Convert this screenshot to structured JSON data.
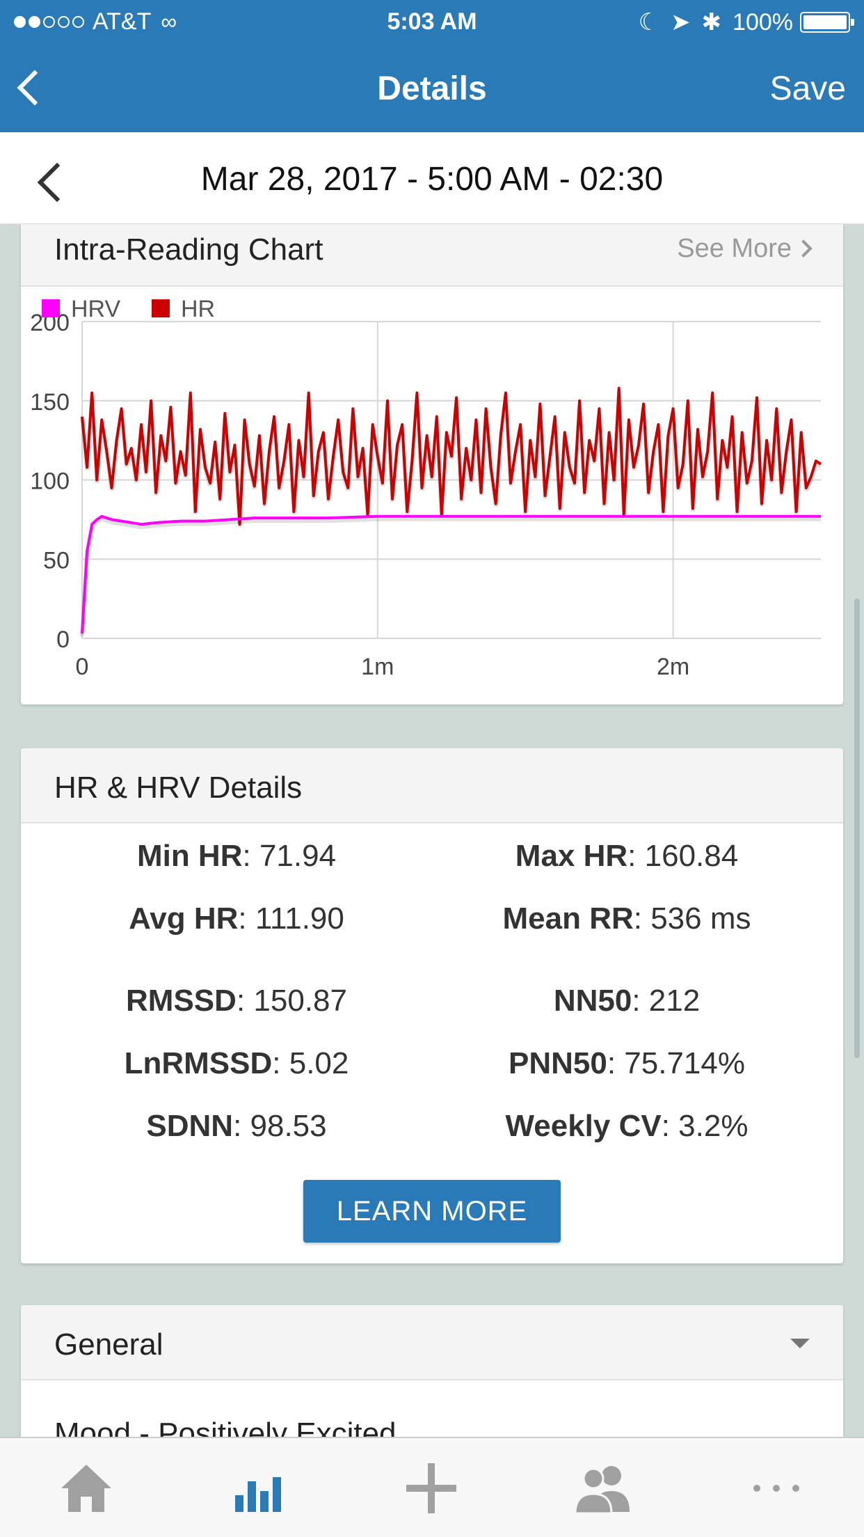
{
  "status_bar": {
    "carrier": "AT&T",
    "time": "5:03 AM",
    "battery": "100%",
    "signal_bars_filled": 2,
    "signal_bars_total": 5
  },
  "nav": {
    "title": "Details",
    "save_label": "Save"
  },
  "date_bar": {
    "date_text": "Mar 28, 2017 - 5:00 AM - 02:30"
  },
  "chart_card": {
    "title": "Intra-Reading Chart",
    "see_more": "See More"
  },
  "chart_data": {
    "type": "line",
    "legend": [
      "HRV",
      "HR"
    ],
    "legend_placement": "top-left",
    "x_ticks": [
      "0",
      "1m",
      "2m"
    ],
    "y_ticks": [
      "0",
      "50",
      "100",
      "150",
      "200"
    ],
    "ylim": [
      0,
      200
    ],
    "xlim_seconds": [
      0,
      150
    ],
    "grid": true,
    "series": [
      {
        "name": "HRV",
        "color": "#ff00ff",
        "x": [
          0,
          1,
          2,
          3,
          4,
          6,
          8,
          10,
          12,
          15,
          20,
          25,
          30,
          35,
          40,
          50,
          60,
          70,
          80,
          90,
          100,
          110,
          120,
          130,
          140,
          150
        ],
        "y": [
          3,
          55,
          72,
          75,
          77,
          75,
          74,
          73,
          72,
          73,
          74,
          74,
          75,
          76,
          76,
          76,
          77,
          77,
          77,
          77,
          77,
          77,
          77,
          77,
          77,
          77
        ]
      },
      {
        "name": "HR",
        "color": "#cc0000",
        "x": [
          0,
          1,
          2,
          3,
          4,
          5,
          6,
          7,
          8,
          9,
          10,
          11,
          12,
          13,
          14,
          15,
          16,
          17,
          18,
          19,
          20,
          21,
          22,
          23,
          24,
          25,
          26,
          27,
          28,
          29,
          30,
          31,
          32,
          33,
          34,
          35,
          36,
          37,
          38,
          39,
          40,
          41,
          42,
          43,
          44,
          45,
          46,
          47,
          48,
          49,
          50,
          51,
          52,
          53,
          54,
          55,
          56,
          57,
          58,
          59,
          60,
          61,
          62,
          63,
          64,
          65,
          66,
          67,
          68,
          69,
          70,
          71,
          72,
          73,
          74,
          75,
          76,
          77,
          78,
          79,
          80,
          81,
          82,
          83,
          84,
          85,
          86,
          87,
          88,
          89,
          90,
          91,
          92,
          93,
          94,
          95,
          96,
          97,
          98,
          99,
          100,
          101,
          102,
          103,
          104,
          105,
          106,
          107,
          108,
          109,
          110,
          111,
          112,
          113,
          114,
          115,
          116,
          117,
          118,
          119,
          120,
          121,
          122,
          123,
          124,
          125,
          126,
          127,
          128,
          129,
          130,
          131,
          132,
          133,
          134,
          135,
          136,
          137,
          138,
          139,
          140,
          141,
          142,
          143,
          144,
          145,
          146,
          147,
          148,
          149,
          150
        ],
        "y": [
          140,
          108,
          155,
          100,
          138,
          118,
          95,
          125,
          145,
          110,
          120,
          100,
          135,
          105,
          150,
          92,
          128,
          112,
          146,
          98,
          118,
          103,
          155,
          80,
          132,
          108,
          98,
          124,
          88,
          142,
          105,
          122,
          72,
          138,
          110,
          96,
          128,
          85,
          118,
          140,
          95,
          112,
          135,
          80,
          125,
          102,
          155,
          90,
          118,
          130,
          88,
          115,
          138,
          105,
          95,
          145,
          102,
          120,
          78,
          135,
          115,
          98,
          150,
          88,
          122,
          135,
          80,
          112,
          155,
          95,
          128,
          102,
          140,
          78,
          130,
          115,
          152,
          88,
          120,
          100,
          138,
          92,
          145,
          108,
          85,
          128,
          155,
          98,
          118,
          135,
          80,
          125,
          102,
          148,
          90,
          115,
          140,
          82,
          130,
          108,
          98,
          150,
          92,
          125,
          112,
          145,
          85,
          130,
          100,
          158,
          78,
          138,
          108,
          122,
          148,
          92,
          118,
          135,
          80,
          128,
          145,
          95,
          110,
          150,
          82,
          132,
          102,
          118,
          155,
          88,
          125,
          108,
          140,
          80,
          130,
          98,
          112,
          152,
          85,
          125,
          100,
          145,
          92,
          118,
          138,
          80,
          130,
          95,
          102,
          112,
          110
        ]
      }
    ]
  },
  "details_card": {
    "title": "HR & HRV Details",
    "stats": [
      {
        "label": "Min HR",
        "value": "71.94"
      },
      {
        "label": "Max HR",
        "value": "160.84"
      },
      {
        "label": "Avg HR",
        "value": "111.90"
      },
      {
        "label": "Mean RR",
        "value": "536 ms"
      },
      {
        "label": "RMSSD",
        "value": "150.87"
      },
      {
        "label": "NN50",
        "value": "212"
      },
      {
        "label": "LnRMSSD",
        "value": "5.02"
      },
      {
        "label": "PNN50",
        "value": "75.714%"
      },
      {
        "label": "SDNN",
        "value": "98.53"
      },
      {
        "label": "Weekly CV",
        "value": "3.2%"
      }
    ],
    "learn_more": "LEARN MORE"
  },
  "general_card": {
    "title": "General",
    "first_row": "Mood - Positively Excited"
  },
  "tab_bar": {
    "tabs": [
      {
        "icon": "home-icon",
        "active": false
      },
      {
        "icon": "bar-chart-icon",
        "active": true
      },
      {
        "icon": "plus-icon",
        "active": false
      },
      {
        "icon": "people-icon",
        "active": false
      },
      {
        "icon": "more-icon",
        "active": false
      }
    ],
    "active_color": "#2a7ab8",
    "inactive_color": "#a0a0a0"
  }
}
